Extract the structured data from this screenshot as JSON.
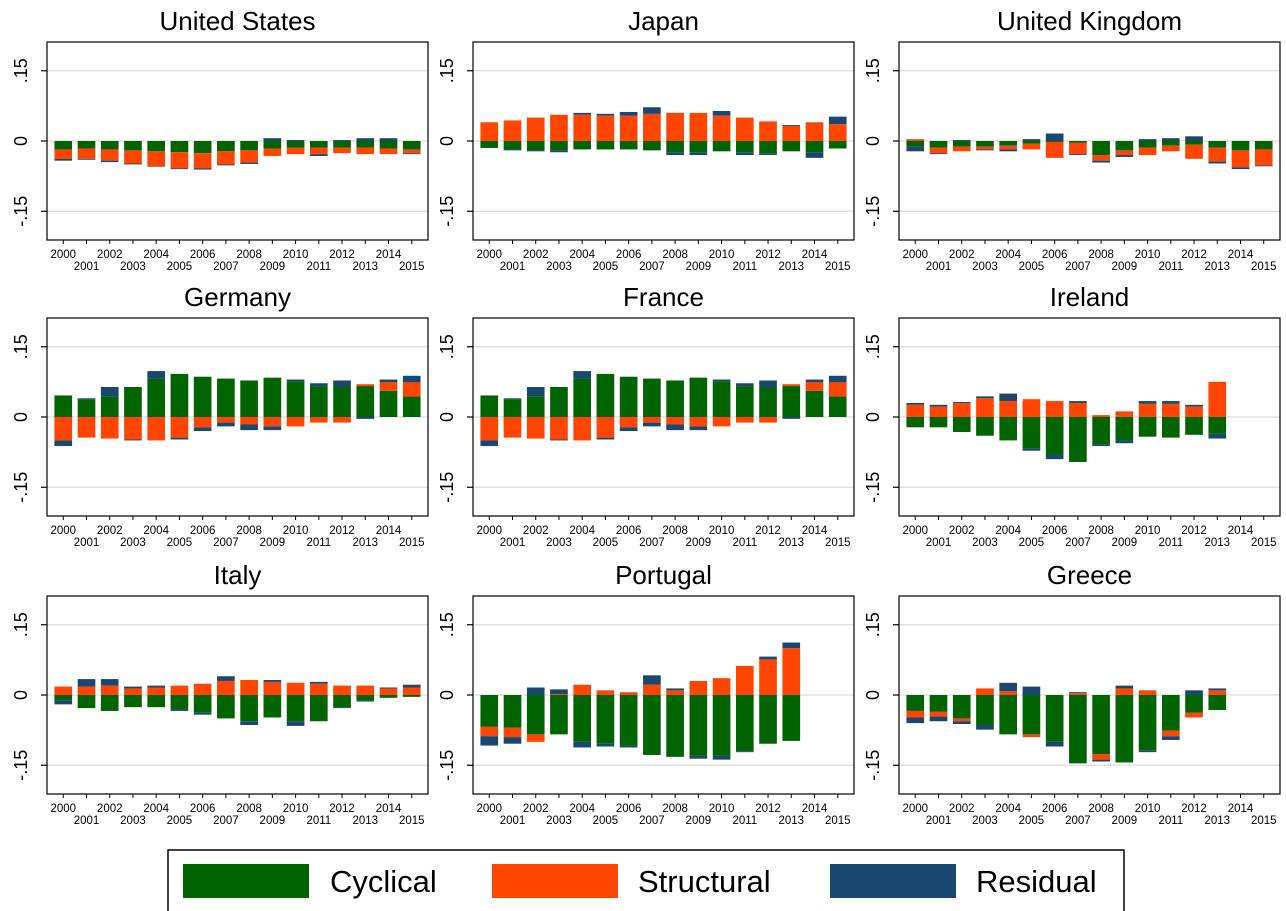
{
  "colors": {
    "cyclical": "#006400",
    "structural": "#ff4500",
    "residual": "#1a476f",
    "grid": "#dcdcdc"
  },
  "legend": {
    "items": [
      {
        "key": "cyclical",
        "label": "Cyclical"
      },
      {
        "key": "structural",
        "label": "Structural"
      },
      {
        "key": "residual",
        "label": "Residual"
      }
    ]
  },
  "chart_data": [
    {
      "type": "bar",
      "title": "United States",
      "y_tick_labels": [
        ".15",
        "0",
        "-.15"
      ],
      "y_ticks": [
        0.15,
        0,
        -0.15
      ],
      "ylim": [
        -0.19,
        0.19
      ],
      "x_tick_labels_row1": [
        "2000",
        "2002",
        "2004",
        "2006",
        "2008",
        "2010",
        "2012",
        "2014"
      ],
      "x_tick_labels_row2": [
        "2001",
        "2003",
        "2005",
        "2007",
        "2009",
        "2011",
        "2013",
        "2015"
      ],
      "categories": [
        "2000",
        "2001",
        "2002",
        "2003",
        "2004",
        "2005",
        "2006",
        "2007",
        "2008",
        "2009",
        "2010",
        "2011",
        "2012",
        "2013",
        "2014",
        "2015"
      ],
      "series": [
        {
          "key": "cyclical",
          "name": "Cyclical",
          "values": [
            -0.018,
            -0.016,
            -0.018,
            -0.02,
            -0.022,
            -0.024,
            -0.026,
            -0.022,
            -0.02,
            -0.016,
            -0.014,
            -0.014,
            -0.014,
            -0.014,
            -0.016,
            -0.018
          ]
        },
        {
          "key": "structural",
          "name": "Structural",
          "values": [
            -0.02,
            -0.022,
            -0.024,
            -0.028,
            -0.032,
            -0.034,
            -0.032,
            -0.028,
            -0.026,
            -0.016,
            -0.014,
            -0.014,
            -0.012,
            -0.014,
            -0.012,
            -0.008
          ]
        },
        {
          "key": "residual",
          "name": "Residual",
          "values": [
            -0.004,
            -0.002,
            -0.003,
            -0.002,
            -0.001,
            -0.002,
            -0.003,
            -0.002,
            -0.003,
            0.006,
            0.002,
            -0.004,
            0.002,
            0.006,
            0.006,
            -0.002
          ]
        }
      ]
    },
    {
      "type": "bar",
      "title": "Japan",
      "y_tick_labels": [
        ".15",
        "0",
        "-.15"
      ],
      "y_ticks": [
        0.15,
        0,
        -0.15
      ],
      "ylim": [
        -0.19,
        0.19
      ],
      "x_tick_labels_row1": [
        "2000",
        "2002",
        "2004",
        "2006",
        "2008",
        "2010",
        "2012",
        "2014"
      ],
      "x_tick_labels_row2": [
        "2001",
        "2003",
        "2005",
        "2007",
        "2009",
        "2011",
        "2013",
        "2015"
      ],
      "categories": [
        "2000",
        "2001",
        "2002",
        "2003",
        "2004",
        "2005",
        "2006",
        "2007",
        "2008",
        "2009",
        "2010",
        "2011",
        "2012",
        "2013",
        "2014",
        "2015"
      ],
      "series": [
        {
          "key": "cyclical",
          "name": "Cyclical",
          "values": [
            -0.014,
            -0.018,
            -0.02,
            -0.02,
            -0.018,
            -0.018,
            -0.018,
            -0.02,
            -0.024,
            -0.024,
            -0.022,
            -0.024,
            -0.026,
            -0.022,
            -0.024,
            -0.016
          ]
        },
        {
          "key": "structural",
          "name": "Structural",
          "values": [
            0.04,
            0.044,
            0.05,
            0.056,
            0.056,
            0.054,
            0.054,
            0.058,
            0.06,
            0.06,
            0.054,
            0.05,
            0.042,
            0.032,
            0.04,
            0.036
          ]
        },
        {
          "key": "residual",
          "name": "Residual",
          "values": [
            -0.001,
            -0.002,
            -0.002,
            -0.004,
            0.004,
            0.004,
            0.008,
            0.014,
            -0.006,
            -0.006,
            0.01,
            -0.006,
            -0.004,
            0.002,
            -0.012,
            0.016
          ]
        }
      ]
    },
    {
      "type": "bar",
      "title": "United Kingdom",
      "y_tick_labels": [
        ".15",
        "0",
        "-.15"
      ],
      "y_ticks": [
        0.15,
        0,
        -0.15
      ],
      "ylim": [
        -0.19,
        0.19
      ],
      "x_tick_labels_row1": [
        "2000",
        "2002",
        "2004",
        "2006",
        "2008",
        "2010",
        "2012",
        "2014"
      ],
      "x_tick_labels_row2": [
        "2001",
        "2003",
        "2005",
        "2007",
        "2009",
        "2011",
        "2013",
        "2015"
      ],
      "categories": [
        "2000",
        "2001",
        "2002",
        "2003",
        "2004",
        "2005",
        "2006",
        "2007",
        "2008",
        "2009",
        "2010",
        "2011",
        "2012",
        "2013",
        "2014",
        "2015"
      ],
      "series": [
        {
          "key": "cyclical",
          "name": "Cyclical",
          "values": [
            -0.012,
            -0.014,
            -0.012,
            -0.012,
            -0.01,
            -0.006,
            -0.002,
            -0.004,
            -0.03,
            -0.02,
            -0.014,
            -0.01,
            -0.008,
            -0.014,
            -0.02,
            -0.018
          ]
        },
        {
          "key": "structural",
          "name": "Structural",
          "values": [
            0.004,
            -0.012,
            -0.01,
            -0.006,
            -0.008,
            -0.012,
            -0.034,
            -0.024,
            -0.012,
            -0.01,
            -0.016,
            -0.012,
            -0.03,
            -0.03,
            -0.036,
            -0.034
          ]
        },
        {
          "key": "residual",
          "name": "Residual",
          "values": [
            -0.01,
            -0.002,
            0.002,
            -0.002,
            -0.004,
            0.004,
            0.016,
            -0.002,
            -0.004,
            -0.004,
            0.004,
            0.006,
            0.01,
            -0.004,
            -0.004,
            -0.002
          ]
        }
      ]
    },
    {
      "type": "bar",
      "title": "Germany",
      "y_tick_labels": [
        ".15",
        "0",
        "-.15"
      ],
      "y_ticks": [
        0.15,
        0,
        -0.15
      ],
      "ylim": [
        -0.19,
        0.19
      ],
      "x_tick_labels_row1": [
        "2000",
        "2002",
        "2004",
        "2006",
        "2008",
        "2010",
        "2012",
        "2014"
      ],
      "x_tick_labels_row2": [
        "2001",
        "2003",
        "2005",
        "2007",
        "2009",
        "2011",
        "2013",
        "2015"
      ],
      "categories": [
        "2000",
        "2001",
        "2002",
        "2003",
        "2004",
        "2005",
        "2006",
        "2007",
        "2008",
        "2009",
        "2010",
        "2011",
        "2012",
        "2013",
        "2014",
        "2015"
      ],
      "series": [
        {
          "key": "cyclical",
          "name": "Cyclical",
          "values": [
            0.046,
            0.038,
            0.044,
            0.064,
            0.082,
            0.092,
            0.086,
            0.082,
            0.078,
            0.084,
            0.076,
            0.066,
            0.064,
            0.066,
            0.056,
            0.044
          ]
        },
        {
          "key": "structural",
          "name": "Structural",
          "values": [
            -0.05,
            -0.044,
            -0.046,
            -0.048,
            -0.05,
            -0.044,
            -0.022,
            -0.012,
            -0.016,
            -0.02,
            -0.02,
            -0.012,
            -0.012,
            0.004,
            0.018,
            0.03
          ]
        },
        {
          "key": "residual",
          "name": "Residual",
          "values": [
            -0.012,
            0.002,
            0.02,
            -0.002,
            0.016,
            -0.004,
            -0.008,
            -0.008,
            -0.012,
            -0.008,
            0.004,
            0.006,
            0.014,
            -0.004,
            0.006,
            0.014
          ]
        }
      ]
    },
    {
      "type": "bar",
      "title": "France",
      "y_tick_labels": [
        ".15",
        "0",
        "-.15"
      ],
      "y_ticks": [
        0.15,
        0,
        -0.15
      ],
      "ylim": [
        -0.19,
        0.19
      ],
      "x_tick_labels_row1": [
        "2000",
        "2002",
        "2004",
        "2006",
        "2008",
        "2010",
        "2012",
        "2014"
      ],
      "x_tick_labels_row2": [
        "2001",
        "2003",
        "2005",
        "2007",
        "2009",
        "2011",
        "2013",
        "2015"
      ],
      "categories": [
        "2000",
        "2001",
        "2002",
        "2003",
        "2004",
        "2005",
        "2006",
        "2007",
        "2008",
        "2009",
        "2010",
        "2011",
        "2012",
        "2013",
        "2014",
        "2015"
      ],
      "series": [
        {
          "key": "cyclical",
          "name": "Cyclical",
          "values": [
            0.046,
            0.038,
            0.044,
            0.064,
            0.082,
            0.092,
            0.086,
            0.082,
            0.078,
            0.084,
            0.076,
            0.066,
            0.064,
            0.066,
            0.056,
            0.044
          ]
        },
        {
          "key": "structural",
          "name": "Structural",
          "values": [
            -0.05,
            -0.044,
            -0.046,
            -0.048,
            -0.05,
            -0.044,
            -0.022,
            -0.012,
            -0.016,
            -0.02,
            -0.02,
            -0.012,
            -0.012,
            0.004,
            0.018,
            0.03
          ]
        },
        {
          "key": "residual",
          "name": "Residual",
          "values": [
            -0.012,
            0.002,
            0.02,
            -0.002,
            0.016,
            -0.004,
            -0.008,
            -0.008,
            -0.012,
            -0.008,
            0.004,
            0.006,
            0.014,
            -0.004,
            0.006,
            0.014
          ]
        }
      ]
    },
    {
      "type": "bar",
      "title": "Ireland",
      "y_tick_labels": [
        ".15",
        "0",
        "-.15"
      ],
      "y_ticks": [
        0.15,
        0,
        -0.15
      ],
      "ylim": [
        -0.19,
        0.19
      ],
      "x_tick_labels_row1": [
        "2000",
        "2002",
        "2004",
        "2006",
        "2008",
        "2010",
        "2012",
        "2014"
      ],
      "x_tick_labels_row2": [
        "2001",
        "2003",
        "2005",
        "2007",
        "2009",
        "2011",
        "2013",
        "2015"
      ],
      "categories": [
        "2000",
        "2001",
        "2002",
        "2003",
        "2004",
        "2005",
        "2006",
        "2007",
        "2008",
        "2009",
        "2010",
        "2011",
        "2012",
        "2013",
        "2014",
        "2015"
      ],
      "series": [
        {
          "key": "cyclical",
          "name": "Cyclical",
          "values": [
            -0.022,
            -0.022,
            -0.032,
            -0.04,
            -0.05,
            -0.068,
            -0.08,
            -0.096,
            -0.058,
            -0.05,
            -0.042,
            -0.044,
            -0.038,
            -0.036,
            0,
            0
          ]
        },
        {
          "key": "structural",
          "name": "Structural",
          "values": [
            0.026,
            0.022,
            0.03,
            0.04,
            0.034,
            0.038,
            0.034,
            0.03,
            0.004,
            0.012,
            0.028,
            0.028,
            0.022,
            0.075,
            0,
            0
          ]
        },
        {
          "key": "residual",
          "name": "Residual",
          "values": [
            0.004,
            0.004,
            0.002,
            0.004,
            0.016,
            -0.004,
            -0.01,
            0.004,
            -0.004,
            -0.006,
            0.006,
            0.006,
            0.004,
            -0.01,
            0,
            0
          ]
        }
      ]
    },
    {
      "type": "bar",
      "title": "Italy",
      "y_tick_labels": [
        ".15",
        "0",
        "-.15"
      ],
      "y_ticks": [
        0.15,
        0,
        -0.15
      ],
      "ylim": [
        -0.19,
        0.19
      ],
      "x_tick_labels_row1": [
        "2000",
        "2002",
        "2004",
        "2006",
        "2008",
        "2010",
        "2012",
        "2014"
      ],
      "x_tick_labels_row2": [
        "2001",
        "2003",
        "2005",
        "2007",
        "2009",
        "2011",
        "2013",
        "2015"
      ],
      "categories": [
        "2000",
        "2001",
        "2002",
        "2003",
        "2004",
        "2005",
        "2006",
        "2007",
        "2008",
        "2009",
        "2010",
        "2011",
        "2012",
        "2013",
        "2014",
        "2015"
      ],
      "series": [
        {
          "key": "cyclical",
          "name": "Cyclical",
          "values": [
            -0.012,
            -0.028,
            -0.034,
            -0.026,
            -0.026,
            -0.03,
            -0.038,
            -0.05,
            -0.056,
            -0.048,
            -0.056,
            -0.056,
            -0.026,
            -0.012,
            -0.006,
            -0.004
          ]
        },
        {
          "key": "structural",
          "name": "Structural",
          "values": [
            0.018,
            0.018,
            0.02,
            0.014,
            0.016,
            0.02,
            0.024,
            0.03,
            0.032,
            0.028,
            0.026,
            0.024,
            0.02,
            0.02,
            0.014,
            0.016
          ]
        },
        {
          "key": "residual",
          "name": "Residual",
          "values": [
            -0.008,
            0.016,
            0.014,
            0.004,
            0.004,
            -0.004,
            -0.004,
            0.01,
            -0.008,
            0.004,
            -0.01,
            0.004,
            -0.002,
            -0.002,
            0.002,
            0.006
          ]
        }
      ]
    },
    {
      "type": "bar",
      "title": "Portugal",
      "y_tick_labels": [
        ".15",
        "0",
        "-.15"
      ],
      "y_ticks": [
        0.15,
        0,
        -0.15
      ],
      "ylim": [
        -0.19,
        0.19
      ],
      "x_tick_labels_row1": [
        "2000",
        "2002",
        "2004",
        "2006",
        "2008",
        "2010",
        "2012",
        "2014"
      ],
      "x_tick_labels_row2": [
        "2001",
        "2003",
        "2005",
        "2007",
        "2009",
        "2011",
        "2013",
        "2015"
      ],
      "categories": [
        "2000",
        "2001",
        "2002",
        "2003",
        "2004",
        "2005",
        "2006",
        "2007",
        "2008",
        "2009",
        "2010",
        "2011",
        "2012",
        "2013",
        "2014",
        "2015"
      ],
      "series": [
        {
          "key": "cyclical",
          "name": "Cyclical",
          "values": [
            -0.068,
            -0.07,
            -0.084,
            -0.084,
            -0.1,
            -0.104,
            -0.108,
            -0.128,
            -0.132,
            -0.13,
            -0.13,
            -0.12,
            -0.104,
            -0.098,
            0,
            0
          ]
        },
        {
          "key": "structural",
          "name": "Structural",
          "values": [
            -0.02,
            -0.02,
            -0.016,
            0.002,
            0.022,
            0.01,
            0.006,
            0.022,
            0.01,
            0.03,
            0.036,
            0.062,
            0.076,
            0.1,
            0,
            0
          ]
        },
        {
          "key": "residual",
          "name": "Residual",
          "values": [
            -0.02,
            -0.014,
            0.016,
            0.01,
            -0.012,
            -0.006,
            -0.004,
            0.02,
            0.004,
            -0.006,
            -0.008,
            -0.002,
            0.006,
            0.012,
            0,
            0
          ]
        }
      ]
    },
    {
      "type": "bar",
      "title": "Greece",
      "y_tick_labels": [
        ".15",
        "0",
        "-.15"
      ],
      "y_ticks": [
        0.15,
        0,
        -0.15
      ],
      "ylim": [
        -0.19,
        0.19
      ],
      "x_tick_labels_row1": [
        "2000",
        "2002",
        "2004",
        "2006",
        "2008",
        "2010",
        "2012",
        "2014"
      ],
      "x_tick_labels_row2": [
        "2001",
        "2003",
        "2005",
        "2007",
        "2009",
        "2011",
        "2013",
        "2015"
      ],
      "categories": [
        "2000",
        "2001",
        "2002",
        "2003",
        "2004",
        "2005",
        "2006",
        "2007",
        "2008",
        "2009",
        "2010",
        "2011",
        "2012",
        "2013",
        "2014",
        "2015"
      ],
      "series": [
        {
          "key": "cyclical",
          "name": "Cyclical",
          "values": [
            -0.034,
            -0.036,
            -0.05,
            -0.064,
            -0.084,
            -0.084,
            -0.1,
            -0.146,
            -0.126,
            -0.144,
            -0.118,
            -0.076,
            -0.038,
            -0.032,
            0,
            0
          ]
        },
        {
          "key": "structural",
          "name": "Structural",
          "values": [
            -0.014,
            -0.01,
            -0.006,
            0.014,
            0.008,
            -0.006,
            0,
            0.004,
            -0.012,
            0.014,
            0.01,
            -0.012,
            -0.01,
            0.01,
            0,
            0
          ]
        },
        {
          "key": "residual",
          "name": "Residual",
          "values": [
            -0.012,
            -0.01,
            -0.006,
            -0.01,
            0.018,
            0.018,
            -0.01,
            0.002,
            -0.004,
            0.006,
            -0.004,
            -0.008,
            0.01,
            0.004,
            0,
            0
          ]
        }
      ]
    }
  ]
}
